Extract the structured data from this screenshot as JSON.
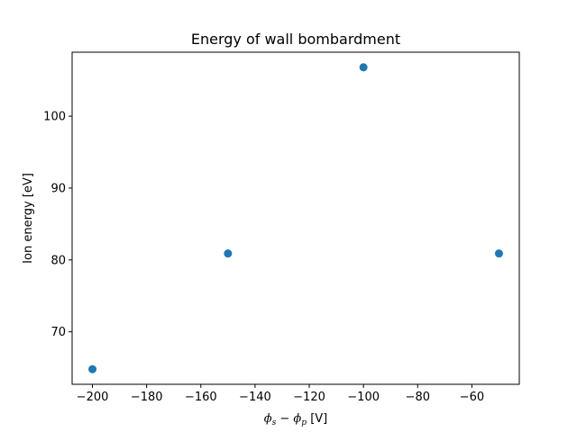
{
  "chart_data": {
    "type": "scatter",
    "title": "Energy of wall bombardment",
    "xlabel": {
      "phi_s": "ϕ",
      "sub_s": "s",
      "minus": " − ",
      "phi_p": "ϕ",
      "sub_p": "p",
      "unit": " [V]"
    },
    "ylabel": "Ion energy [eV]",
    "xlim": [
      -207.5,
      -42.5
    ],
    "ylim": [
      62.7,
      108.9
    ],
    "xticks": [
      -200,
      -180,
      -160,
      -140,
      -120,
      -100,
      -80,
      -60
    ],
    "yticks": [
      70,
      80,
      90,
      100
    ],
    "grid": false,
    "color": "#1f77b4",
    "series": [
      {
        "x": [
          -200,
          -150,
          -100,
          -50
        ],
        "y": [
          64.8,
          80.9,
          106.8,
          80.9
        ]
      }
    ]
  }
}
